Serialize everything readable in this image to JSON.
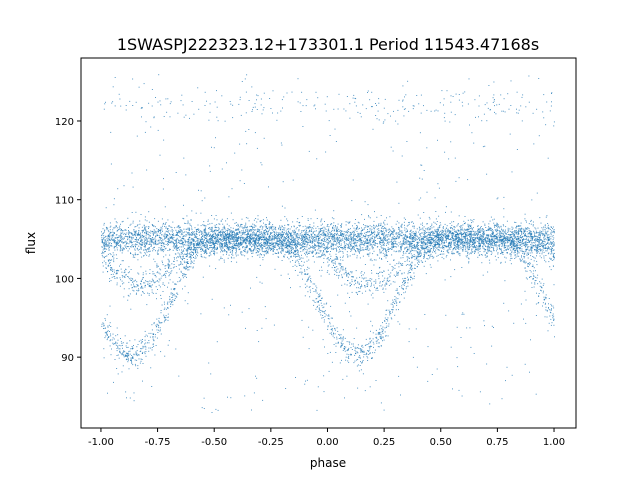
{
  "chart_data": {
    "type": "scatter",
    "title": "1SWASPJ222323.12+173301.1 Period 11543.47168s",
    "xlabel": "phase",
    "ylabel": "flux",
    "xlim": [
      -1.088,
      1.097
    ],
    "ylim": [
      81.0,
      128.0
    ],
    "xticks": [
      "-1.00",
      "-0.75",
      "-0.50",
      "-0.25",
      "0.00",
      "0.25",
      "0.50",
      "0.75",
      "1.00"
    ],
    "xtick_values": [
      -1,
      -0.75,
      -0.5,
      -0.25,
      0,
      0.25,
      0.5,
      0.75,
      1
    ],
    "yticks": [
      "90",
      "100",
      "110",
      "120"
    ],
    "ytick_values": [
      90,
      100,
      110,
      120
    ],
    "grid": false,
    "marker_color": "#1f77b4",
    "phase_range": [
      -1.0,
      1.0
    ],
    "components": {
      "baseline": {
        "flux": 105.0,
        "spread": 1.2
      },
      "primary_eclipse": {
        "center_phase": 0.13,
        "half_width": 0.36,
        "min_flux": 90.3,
        "spread": 0.9
      },
      "secondary_eclipse": {
        "center_phase": 0.18,
        "half_width": 0.32,
        "min_flux": 99.3,
        "spread": 0.9
      },
      "high_outlier_cluster": {
        "flux": 122.0,
        "spread": 1.2
      },
      "scatter_range": [
        83,
        126
      ]
    }
  }
}
